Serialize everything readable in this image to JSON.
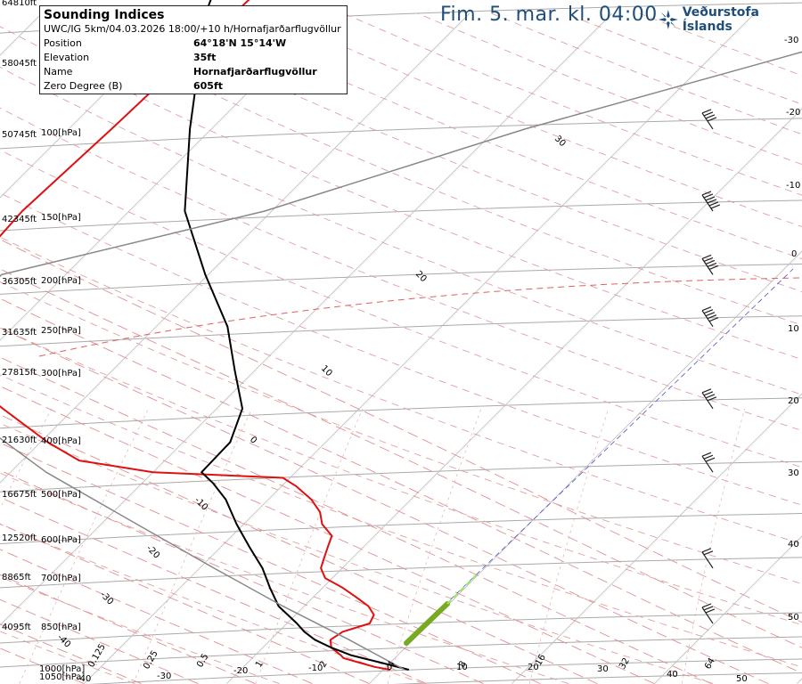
{
  "header": {
    "title": "Fim. 5. mar. kl. 04:00",
    "brand": "Veðurstofa Íslands",
    "brand_icon": "snowflake-logo-icon"
  },
  "info": {
    "title": "Sounding Indices",
    "model_line": "UWC/IG 5km/04.03.2026 18:00/+10 h/Hornafjarðarflugvöllur",
    "rows": [
      {
        "label": "Position",
        "value": "64°18'N 15°14'W"
      },
      {
        "label": "Elevation",
        "value": "35ft"
      },
      {
        "label": "Name",
        "value": "Hornafjarðarflugvöllur"
      },
      {
        "label": "Zero Degree (B)",
        "value": "605ft"
      }
    ]
  },
  "colors": {
    "temperature": "#dd1111",
    "dewpoint": "#000000",
    "isobar": "#aaaaaa",
    "isotherm": "#bbbbbb",
    "dry_adiabat": "#e0a0a0",
    "moist_adiabat": "#e09090",
    "mixing_ratio": "#e0b0b0",
    "parcel": "#888888",
    "wind_barb": "#222222",
    "lcl_line": "#5050cc",
    "zero_line": "#e06060",
    "low_level": "#77aa22"
  },
  "chart_data": {
    "type": "line",
    "title": "",
    "altitude_labels": [
      "64810ft",
      "58045ft",
      "50745ft",
      "42345ft",
      "36305ft",
      "31635ft",
      "27815ft",
      "21630ft",
      "16675ft",
      "12520ft",
      "8865ft",
      "4095ft"
    ],
    "pressure_labels": [
      "100[hPa]",
      "150[hPa]",
      "200[hPa]",
      "250[hPa]",
      "300[hPa]",
      "400[hPa]",
      "500[hPa]",
      "600[hPa]",
      "700[hPa]",
      "850[hPa]",
      "1000[hPa]",
      "1050[hPa]"
    ],
    "bottom_temp_labels": [
      "-40",
      "-30",
      "-20",
      "-10",
      "0",
      "10",
      "20",
      "30",
      "40",
      "50"
    ],
    "right_temp_labels": [
      "-30",
      "-20",
      "-10",
      "0",
      "10",
      "20",
      "30",
      "40",
      "50"
    ],
    "isotherm_labels": [
      "30",
      "20",
      "10",
      "0",
      "-10",
      "-20",
      "-30",
      "-40"
    ],
    "mixing_ratio_labels": [
      "0.125",
      "0.25",
      "0.5",
      "1",
      "2",
      "4",
      "8",
      "16",
      "32",
      "64"
    ],
    "series": [
      {
        "name": "",
        "role": "temperature",
        "pressure_hPa": [
          1000,
          990,
          975,
          960,
          950,
          925,
          900,
          875,
          850,
          825,
          800,
          775,
          750,
          725,
          700,
          675,
          650,
          625,
          600,
          575,
          550,
          525,
          510,
          500,
          480,
          450,
          400,
          350,
          300,
          250,
          200,
          150,
          100,
          70,
          50
        ],
        "temp_C": [
          0.5,
          -0.8,
          -2.2,
          -3.6,
          -4.0,
          -5.2,
          -5.8,
          -5.5,
          -4.2,
          -4.5,
          -5.5,
          -7.0,
          -8.6,
          -10.5,
          -11.5,
          -12.0,
          -12.5,
          -13.0,
          -14.5,
          -15.5,
          -17.0,
          -19.0,
          -20.5,
          -30.0,
          -36.0,
          -39.5,
          -45.0,
          -51.0,
          -55.0,
          -57.0,
          -57.5,
          -57.0,
          -56.5,
          -56.0,
          -55.5
        ]
      },
      {
        "name": "",
        "role": "dewpoint",
        "pressure_hPa": [
          1000,
          975,
          950,
          925,
          900,
          875,
          850,
          800,
          750,
          700,
          650,
          600,
          550,
          520,
          500,
          450,
          400,
          350,
          300,
          250,
          200,
          150,
          100,
          70,
          50
        ],
        "temp_C": [
          1.8,
          -0.7,
          -3.3,
          -5.2,
          -6.9,
          -8.2,
          -9.3,
          -11.8,
          -13.7,
          -15.6,
          -18.0,
          -20.5,
          -23.0,
          -25.0,
          -26.6,
          -26.7,
          -28.2,
          -31.4,
          -35.0,
          -40.2,
          -46.1,
          -51.5,
          -58.5,
          -63.0,
          -66.0
        ]
      },
      {
        "name": "",
        "role": "parcel",
        "pressure_hPa": [
          1000,
          900,
          800,
          700,
          600,
          500,
          400,
          300,
          250,
          200,
          150,
          100,
          70,
          50
        ],
        "temp_C": [
          1.5,
          -4.5,
          -11.5,
          -19.0,
          -27.5,
          -37.5,
          -48.0,
          -54.0,
          -54.5,
          -40.5,
          -28.0,
          -7.0,
          8.0,
          24.0
        ]
      }
    ],
    "wind_barbs": [
      {
        "pressure_hPa": 850,
        "speed_kt": 25
      },
      {
        "pressure_hPa": 700,
        "speed_kt": 20
      },
      {
        "pressure_hPa": 500,
        "speed_kt": 30
      },
      {
        "pressure_hPa": 400,
        "speed_kt": 35
      },
      {
        "pressure_hPa": 300,
        "speed_kt": 45
      },
      {
        "pressure_hPa": 250,
        "speed_kt": 50
      },
      {
        "pressure_hPa": 200,
        "speed_kt": 55
      },
      {
        "pressure_hPa": 150,
        "speed_kt": 40
      }
    ],
    "xlim_C": [
      -40,
      50
    ],
    "ylim_hPa": [
      1050,
      100
    ],
    "skew_deg": 45,
    "legend": "none",
    "grid": true
  }
}
